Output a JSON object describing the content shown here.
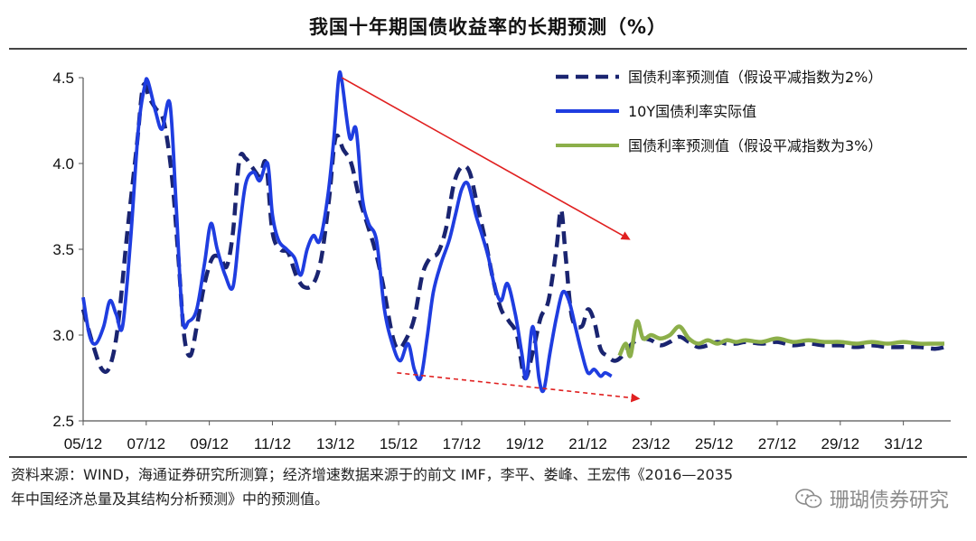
{
  "chart_data": {
    "type": "line",
    "title": "我国十年期国债收益率的长期预测（%）",
    "xlabel": "",
    "ylabel": "",
    "ylim": [
      2.5,
      4.5
    ],
    "yticks": [
      "2.5",
      "3.0",
      "3.5",
      "4.0",
      "4.5"
    ],
    "x_range": [
      2005.0,
      2032.5
    ],
    "xticks": [
      {
        "label": "05/12",
        "x": 2005.0
      },
      {
        "label": "07/12",
        "x": 2007.0
      },
      {
        "label": "09/12",
        "x": 2009.0
      },
      {
        "label": "11/12",
        "x": 2011.0
      },
      {
        "label": "13/12",
        "x": 2013.0
      },
      {
        "label": "15/12",
        "x": 2015.0
      },
      {
        "label": "17/12",
        "x": 2017.0
      },
      {
        "label": "19/12",
        "x": 2019.0
      },
      {
        "label": "21/12",
        "x": 2021.0
      },
      {
        "label": "23/12",
        "x": 2023.0
      },
      {
        "label": "25/12",
        "x": 2025.0
      },
      {
        "label": "27/12",
        "x": 2027.0
      },
      {
        "label": "29/12",
        "x": 2029.0
      },
      {
        "label": "31/12",
        "x": 2031.0
      }
    ],
    "legend_position": "top-right",
    "series": [
      {
        "name": "国债利率预测值（假设平减指数为2%）",
        "color": "#1a2470",
        "style": "dashed",
        "points": [
          [
            2005.0,
            3.15
          ],
          [
            2005.3,
            2.95
          ],
          [
            2005.6,
            2.8
          ],
          [
            2005.85,
            2.82
          ],
          [
            2006.1,
            3.05
          ],
          [
            2006.4,
            3.6
          ],
          [
            2006.7,
            4.1
          ],
          [
            2006.9,
            4.45
          ],
          [
            2007.1,
            4.38
          ],
          [
            2007.3,
            4.32
          ],
          [
            2007.55,
            4.25
          ],
          [
            2007.8,
            3.95
          ],
          [
            2008.0,
            3.5
          ],
          [
            2008.2,
            3.0
          ],
          [
            2008.4,
            2.88
          ],
          [
            2008.6,
            3.05
          ],
          [
            2008.85,
            3.3
          ],
          [
            2009.1,
            3.45
          ],
          [
            2009.35,
            3.45
          ],
          [
            2009.55,
            3.4
          ],
          [
            2009.75,
            3.6
          ],
          [
            2009.95,
            4.02
          ],
          [
            2010.15,
            4.03
          ],
          [
            2010.35,
            3.98
          ],
          [
            2010.6,
            3.93
          ],
          [
            2010.8,
            4.0
          ],
          [
            2011.0,
            3.6
          ],
          [
            2011.25,
            3.5
          ],
          [
            2011.5,
            3.48
          ],
          [
            2011.75,
            3.35
          ],
          [
            2012.0,
            3.28
          ],
          [
            2012.3,
            3.3
          ],
          [
            2012.55,
            3.45
          ],
          [
            2012.8,
            3.8
          ],
          [
            2013.0,
            4.15
          ],
          [
            2013.25,
            4.08
          ],
          [
            2013.5,
            4.0
          ],
          [
            2013.75,
            3.8
          ],
          [
            2014.0,
            3.65
          ],
          [
            2014.25,
            3.5
          ],
          [
            2014.5,
            3.3
          ],
          [
            2014.8,
            3.0
          ],
          [
            2015.0,
            2.92
          ],
          [
            2015.25,
            2.98
          ],
          [
            2015.5,
            3.1
          ],
          [
            2015.75,
            3.35
          ],
          [
            2016.0,
            3.45
          ],
          [
            2016.25,
            3.48
          ],
          [
            2016.5,
            3.62
          ],
          [
            2016.75,
            3.88
          ],
          [
            2017.0,
            3.98
          ],
          [
            2017.25,
            3.95
          ],
          [
            2017.5,
            3.75
          ],
          [
            2017.75,
            3.55
          ],
          [
            2018.0,
            3.32
          ],
          [
            2018.25,
            3.15
          ],
          [
            2018.5,
            3.08
          ],
          [
            2018.75,
            3.0
          ],
          [
            2019.0,
            2.75
          ],
          [
            2019.25,
            2.9
          ],
          [
            2019.5,
            3.1
          ],
          [
            2019.75,
            3.2
          ],
          [
            2020.0,
            3.5
          ],
          [
            2020.15,
            3.73
          ],
          [
            2020.3,
            3.45
          ],
          [
            2020.5,
            3.1
          ],
          [
            2020.8,
            3.05
          ],
          [
            2021.0,
            3.15
          ],
          [
            2021.2,
            3.08
          ],
          [
            2021.4,
            2.92
          ],
          [
            2021.6,
            2.88
          ],
          [
            2021.85,
            2.85
          ],
          [
            2022.1,
            2.88
          ],
          [
            2022.4,
            2.95
          ],
          [
            2022.7,
            2.98
          ],
          [
            2023.0,
            2.97
          ],
          [
            2023.3,
            2.94
          ],
          [
            2023.6,
            2.96
          ],
          [
            2023.9,
            2.99
          ],
          [
            2024.2,
            2.96
          ],
          [
            2024.5,
            2.93
          ],
          [
            2024.8,
            2.94
          ],
          [
            2025.1,
            2.96
          ],
          [
            2025.4,
            2.95
          ],
          [
            2025.7,
            2.95
          ],
          [
            2026.0,
            2.96
          ],
          [
            2026.5,
            2.95
          ],
          [
            2027.0,
            2.96
          ],
          [
            2027.5,
            2.94
          ],
          [
            2028.0,
            2.95
          ],
          [
            2028.5,
            2.94
          ],
          [
            2029.0,
            2.94
          ],
          [
            2029.5,
            2.93
          ],
          [
            2030.0,
            2.94
          ],
          [
            2030.5,
            2.93
          ],
          [
            2031.0,
            2.93
          ],
          [
            2031.5,
            2.93
          ],
          [
            2032.0,
            2.92
          ],
          [
            2032.3,
            2.93
          ]
        ]
      },
      {
        "name": "10Y国债利率实际值",
        "color": "#1f3de0",
        "style": "solid",
        "points": [
          [
            2005.0,
            3.22
          ],
          [
            2005.2,
            3.0
          ],
          [
            2005.4,
            2.95
          ],
          [
            2005.65,
            3.05
          ],
          [
            2005.85,
            3.2
          ],
          [
            2006.05,
            3.12
          ],
          [
            2006.25,
            3.05
          ],
          [
            2006.5,
            3.55
          ],
          [
            2006.75,
            4.2
          ],
          [
            2006.95,
            4.45
          ],
          [
            2007.05,
            4.48
          ],
          [
            2007.3,
            4.3
          ],
          [
            2007.5,
            4.2
          ],
          [
            2007.75,
            4.35
          ],
          [
            2007.95,
            3.75
          ],
          [
            2008.15,
            3.1
          ],
          [
            2008.35,
            3.08
          ],
          [
            2008.6,
            3.15
          ],
          [
            2008.85,
            3.42
          ],
          [
            2009.05,
            3.65
          ],
          [
            2009.25,
            3.5
          ],
          [
            2009.5,
            3.35
          ],
          [
            2009.75,
            3.28
          ],
          [
            2009.95,
            3.6
          ],
          [
            2010.15,
            3.88
          ],
          [
            2010.4,
            3.95
          ],
          [
            2010.6,
            3.9
          ],
          [
            2010.85,
            4.0
          ],
          [
            2011.0,
            3.7
          ],
          [
            2011.2,
            3.55
          ],
          [
            2011.45,
            3.5
          ],
          [
            2011.7,
            3.45
          ],
          [
            2011.9,
            3.35
          ],
          [
            2012.1,
            3.5
          ],
          [
            2012.3,
            3.58
          ],
          [
            2012.5,
            3.55
          ],
          [
            2012.75,
            3.8
          ],
          [
            2012.95,
            4.15
          ],
          [
            2013.1,
            4.5
          ],
          [
            2013.2,
            4.48
          ],
          [
            2013.45,
            4.15
          ],
          [
            2013.65,
            4.2
          ],
          [
            2013.85,
            3.8
          ],
          [
            2014.05,
            3.65
          ],
          [
            2014.3,
            3.55
          ],
          [
            2014.55,
            3.15
          ],
          [
            2014.8,
            2.95
          ],
          [
            2015.05,
            2.85
          ],
          [
            2015.3,
            2.95
          ],
          [
            2015.5,
            2.8
          ],
          [
            2015.7,
            2.75
          ],
          [
            2015.9,
            2.98
          ],
          [
            2016.1,
            3.25
          ],
          [
            2016.35,
            3.42
          ],
          [
            2016.6,
            3.55
          ],
          [
            2016.8,
            3.7
          ],
          [
            2017.0,
            3.85
          ],
          [
            2017.2,
            3.88
          ],
          [
            2017.45,
            3.7
          ],
          [
            2017.65,
            3.58
          ],
          [
            2017.85,
            3.45
          ],
          [
            2018.05,
            3.28
          ],
          [
            2018.25,
            3.2
          ],
          [
            2018.45,
            3.3
          ],
          [
            2018.7,
            3.12
          ],
          [
            2018.9,
            2.9
          ],
          [
            2019.05,
            2.75
          ],
          [
            2019.25,
            3.05
          ],
          [
            2019.45,
            2.75
          ],
          [
            2019.6,
            2.68
          ],
          [
            2019.8,
            2.9
          ],
          [
            2020.0,
            3.1
          ],
          [
            2020.2,
            3.25
          ],
          [
            2020.4,
            3.2
          ],
          [
            2020.6,
            3.05
          ],
          [
            2020.8,
            2.9
          ],
          [
            2021.0,
            2.78
          ],
          [
            2021.2,
            2.8
          ],
          [
            2021.4,
            2.76
          ],
          [
            2021.55,
            2.78
          ],
          [
            2021.75,
            2.76
          ]
        ]
      },
      {
        "name": "国债利率预测值（假设平减指数为3%）",
        "color": "#8caf4a",
        "style": "solid",
        "points": [
          [
            2022.0,
            2.88
          ],
          [
            2022.2,
            2.95
          ],
          [
            2022.35,
            2.88
          ],
          [
            2022.55,
            3.08
          ],
          [
            2022.75,
            2.98
          ],
          [
            2023.0,
            3.0
          ],
          [
            2023.3,
            2.98
          ],
          [
            2023.6,
            3.0
          ],
          [
            2023.9,
            3.05
          ],
          [
            2024.2,
            2.98
          ],
          [
            2024.5,
            2.95
          ],
          [
            2024.8,
            2.97
          ],
          [
            2025.1,
            2.95
          ],
          [
            2025.4,
            2.97
          ],
          [
            2025.7,
            2.96
          ],
          [
            2026.0,
            2.97
          ],
          [
            2026.5,
            2.96
          ],
          [
            2027.0,
            2.98
          ],
          [
            2027.5,
            2.96
          ],
          [
            2028.0,
            2.97
          ],
          [
            2028.5,
            2.96
          ],
          [
            2029.0,
            2.96
          ],
          [
            2029.5,
            2.95
          ],
          [
            2030.0,
            2.96
          ],
          [
            2030.5,
            2.95
          ],
          [
            2031.0,
            2.96
          ],
          [
            2031.5,
            2.95
          ],
          [
            2032.0,
            2.95
          ],
          [
            2032.3,
            2.95
          ]
        ]
      }
    ],
    "annotations": [
      {
        "name": "trend-arrow-upper",
        "color": "#e02020",
        "style": "solid",
        "from": [
          2013.2,
          4.5
        ],
        "to": [
          2022.3,
          3.56
        ]
      },
      {
        "name": "trend-arrow-lower",
        "color": "#e02020",
        "style": "dashed",
        "from": [
          2014.95,
          2.78
        ],
        "to": [
          2022.6,
          2.63
        ]
      }
    ]
  },
  "source_note": {
    "line1": "资料来源：WIND，海通证券研究所测算；经济增速数据来源于的前文 IMF，李平、娄峰、王宏伟《2016—2035",
    "line2": "年中国经济总量及其结构分析预测》中的预测值。"
  },
  "watermark": {
    "text": "珊瑚债券研究",
    "icon": "wechat-icon",
    "color": "#8a8a8a"
  }
}
